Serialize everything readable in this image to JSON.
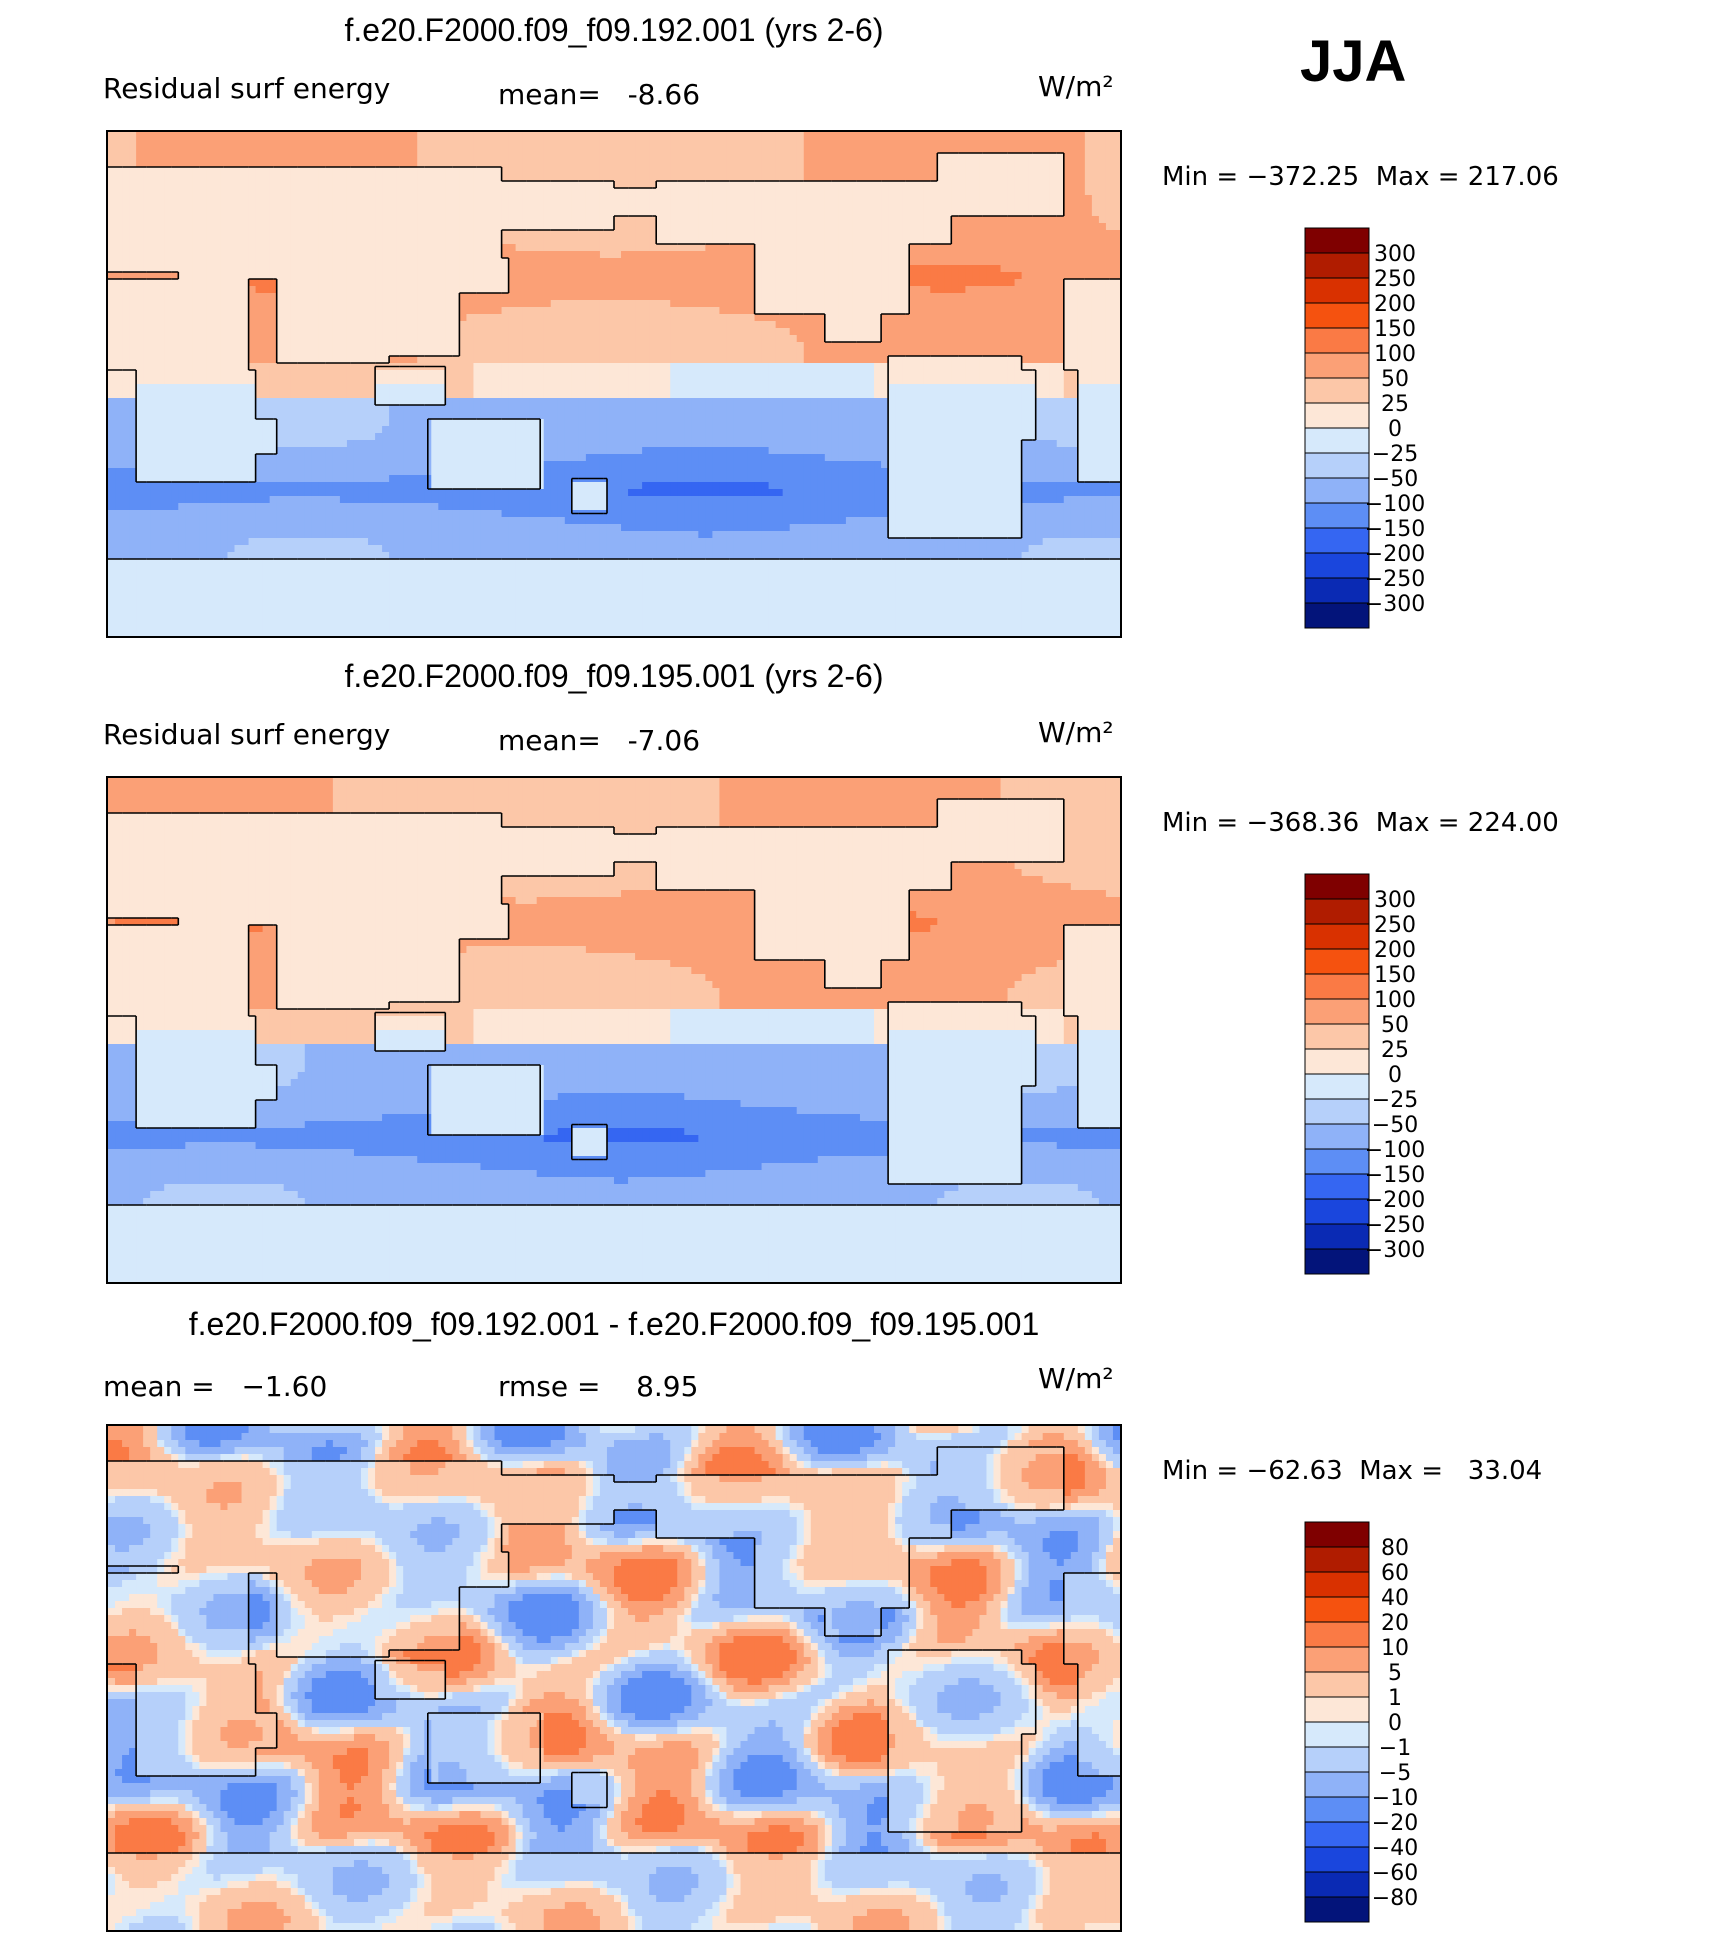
{
  "season": "JJA",
  "chart_data": [
    {
      "type": "heatmap",
      "title": "f.e20.F2000.f09_f09.192.001 (yrs 2-6)",
      "left_label": "Residual surf energy",
      "center_label": "mean=   -8.66",
      "units": "W/m²",
      "min_max": "Min = −372.25  Max = 217.06",
      "min": -372.25,
      "max": 217.06,
      "mean": -8.66,
      "colorbar_levels": [
        "300",
        "250",
        "200",
        "150",
        "100",
        "50",
        "25",
        "0",
        "−25",
        "−50",
        "−100",
        "−150",
        "−200",
        "−250",
        "−300"
      ],
      "colorbar_colors": [
        "#7f0000",
        "#b01c00",
        "#d93100",
        "#f5520f",
        "#fa7a45",
        "#fba076",
        "#fcc7a8",
        "#fde7d7",
        "#d6e9fb",
        "#b6d0fa",
        "#8fb2f8",
        "#5d8ef5",
        "#3566f2",
        "#1a46dd",
        "#0a2ab4",
        "#03147a"
      ],
      "projection": "cylindrical equidistant, centered 180°"
    },
    {
      "type": "heatmap",
      "title": "f.e20.F2000.f09_f09.195.001 (yrs 2-6)",
      "left_label": "Residual surf energy",
      "center_label": "mean=   -7.06",
      "units": "W/m²",
      "min_max": "Min = −368.36  Max = 224.00",
      "min": -368.36,
      "max": 224.0,
      "mean": -7.06,
      "colorbar_levels": [
        "300",
        "250",
        "200",
        "150",
        "100",
        "50",
        "25",
        "0",
        "−25",
        "−50",
        "−100",
        "−150",
        "−200",
        "−250",
        "−300"
      ],
      "colorbar_colors": [
        "#7f0000",
        "#b01c00",
        "#d93100",
        "#f5520f",
        "#fa7a45",
        "#fba076",
        "#fcc7a8",
        "#fde7d7",
        "#d6e9fb",
        "#b6d0fa",
        "#8fb2f8",
        "#5d8ef5",
        "#3566f2",
        "#1a46dd",
        "#0a2ab4",
        "#03147a"
      ],
      "projection": "cylindrical equidistant, centered 180°"
    },
    {
      "type": "heatmap",
      "title": "f.e20.F2000.f09_f09.192.001 - f.e20.F2000.f09_f09.195.001",
      "left_label": "mean =   −1.60",
      "center_label": "rmse =    8.95",
      "units": "W/m²",
      "min_max": "Min = −62.63  Max =   33.04",
      "min": -62.63,
      "max": 33.04,
      "mean": -1.6,
      "rmse": 8.95,
      "colorbar_levels": [
        "80",
        "60",
        "40",
        "20",
        "10",
        "5",
        "1",
        "0",
        "−1",
        "−5",
        "−10",
        "−20",
        "−40",
        "−60",
        "−80"
      ],
      "colorbar_colors": [
        "#7f0000",
        "#b01c00",
        "#d93100",
        "#f5520f",
        "#fa7a45",
        "#fba076",
        "#fcc7a8",
        "#fde7d7",
        "#d6e9fb",
        "#b6d0fa",
        "#8fb2f8",
        "#5d8ef5",
        "#3566f2",
        "#1a46dd",
        "#0a2ab4",
        "#03147a"
      ],
      "projection": "cylindrical equidistant, centered 180°"
    }
  ]
}
